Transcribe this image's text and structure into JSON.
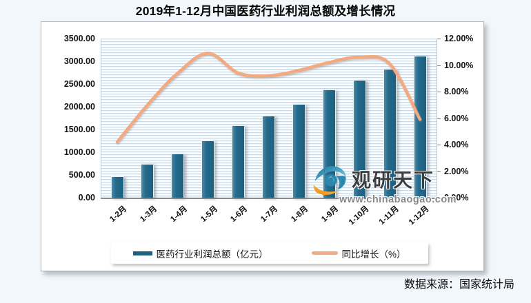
{
  "page": {
    "title": "2019年1-12月中国医药行业利润总额及增长情况",
    "source_note": "数据来源：国家统计局"
  },
  "watermark": {
    "brand": "观研天下",
    "url": "www.chinabaogao.com",
    "logo_icon": "eye-swirl-logo"
  },
  "colors": {
    "bar": "#1d5f7f",
    "line": "#f4aa7e",
    "page_bg": "#f2f7fc",
    "panel_bg": "#ffffff",
    "axis_text": "#141414"
  },
  "chart_data": {
    "type": "bar+line combo",
    "title": "2019年1-12月中国医药行业利润总额及增长情况",
    "categories": [
      "1-2月",
      "1-3月",
      "1-4月",
      "1-5月",
      "1-6月",
      "1-7月",
      "1-8月",
      "1-9月",
      "1-10月",
      "1-11月",
      "1-12月"
    ],
    "series": [
      {
        "name": "医药行业利润总额（亿元）",
        "type": "bar",
        "axis": "left",
        "color": "#1d5f7f",
        "values": [
          465,
          745,
          975,
          1265,
          1590,
          1800,
          2055,
          2375,
          2585,
          2840,
          3120
        ]
      },
      {
        "name": "同比增长（%）",
        "type": "line",
        "axis": "right",
        "color": "#f4aa7e",
        "values": [
          4.2,
          7.0,
          9.4,
          10.9,
          9.4,
          9.2,
          9.6,
          10.2,
          10.6,
          10.1,
          5.9
        ]
      }
    ],
    "left_axis": {
      "min": 0,
      "max": 3500,
      "step": 500,
      "tick_labels": [
        "3500.00",
        "3000.00",
        "2500.00",
        "2000.00",
        "1500.00",
        "1000.00",
        "500.00",
        "0.00"
      ]
    },
    "right_axis": {
      "min": 0,
      "max": 12,
      "step": 2,
      "tick_labels": [
        "12.00%",
        "10.00%",
        "8.00%",
        "6.00%",
        "4.00%",
        "2.00%",
        "0.00%"
      ]
    },
    "legend_position": "bottom",
    "grid": true
  }
}
